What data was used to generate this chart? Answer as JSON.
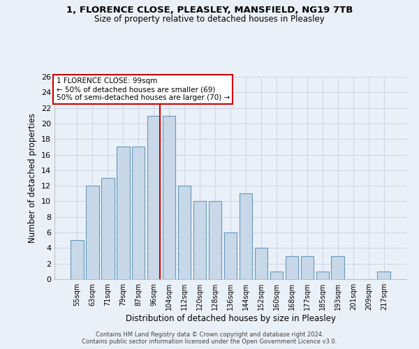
{
  "title_line1": "1, FLORENCE CLOSE, PLEASLEY, MANSFIELD, NG19 7TB",
  "title_line2": "Size of property relative to detached houses in Pleasley",
  "xlabel": "Distribution of detached houses by size in Pleasley",
  "ylabel": "Number of detached properties",
  "categories": [
    "55sqm",
    "63sqm",
    "71sqm",
    "79sqm",
    "87sqm",
    "96sqm",
    "104sqm",
    "112sqm",
    "120sqm",
    "128sqm",
    "136sqm",
    "144sqm",
    "152sqm",
    "160sqm",
    "168sqm",
    "177sqm",
    "185sqm",
    "193sqm",
    "201sqm",
    "209sqm",
    "217sqm"
  ],
  "values": [
    5,
    12,
    13,
    17,
    17,
    21,
    21,
    12,
    10,
    10,
    6,
    11,
    4,
    1,
    3,
    3,
    1,
    3,
    0,
    0,
    1
  ],
  "bar_color": "#c8d8e8",
  "bar_edge_color": "#6699bb",
  "annotation_line1": "1 FLORENCE CLOSE: 99sqm",
  "annotation_line2": "← 50% of detached houses are smaller (69)",
  "annotation_line3": "50% of semi-detached houses are larger (70) →",
  "annotation_box_color": "#ffffff",
  "annotation_box_edge_color": "#cc0000",
  "vline_color": "#cc0000",
  "ylim": [
    0,
    26
  ],
  "yticks": [
    0,
    2,
    4,
    6,
    8,
    10,
    12,
    14,
    16,
    18,
    20,
    22,
    24,
    26
  ],
  "grid_color": "#d0d8e8",
  "bg_color": "#eaf0f8",
  "footnote1": "Contains HM Land Registry data © Crown copyright and database right 2024.",
  "footnote2": "Contains public sector information licensed under the Open Government Licence v3.0."
}
